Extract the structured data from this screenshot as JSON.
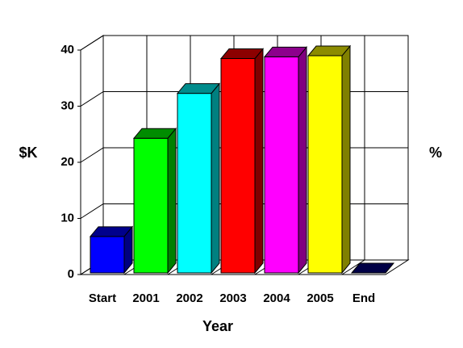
{
  "chart_data": {
    "type": "bar3d",
    "y_label": "$K",
    "y2_label": "%",
    "x_label": "Year",
    "categories": [
      "Start",
      "2001",
      "2002",
      "2003",
      "2004",
      "2005",
      "End"
    ],
    "values": [
      6.5,
      24,
      32,
      38.2,
      38.5,
      38.7,
      0
    ],
    "colors": [
      "#0000ff",
      "#00ff00",
      "#00ffff",
      "#ff0000",
      "#ff00ff",
      "#ffff00",
      "#000080"
    ],
    "ylim": [
      0,
      40
    ],
    "yticks": [
      0,
      10,
      20,
      30,
      40
    ],
    "grid": true
  }
}
